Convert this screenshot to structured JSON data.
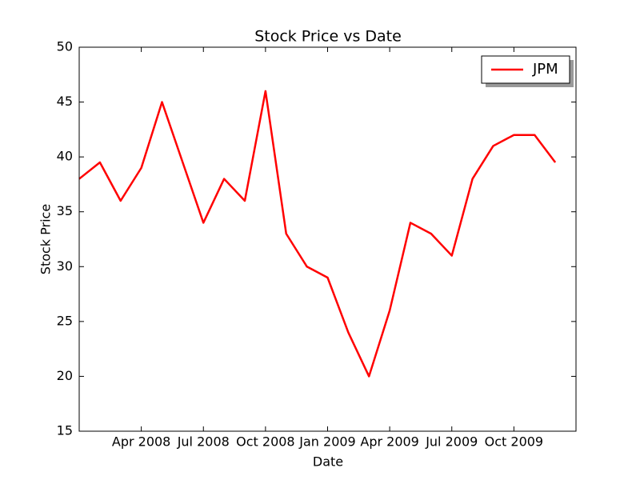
{
  "chart_data": {
    "type": "line",
    "title": "Stock Price vs Date",
    "x_label": "Date",
    "y_label": "Stock Price",
    "x": [
      "2008-01",
      "2008-02",
      "2008-03",
      "2008-04",
      "2008-05",
      "2008-06",
      "2008-07",
      "2008-08",
      "2008-09",
      "2008-10",
      "2008-11",
      "2008-12",
      "2009-01",
      "2009-02",
      "2009-03",
      "2009-04",
      "2009-05",
      "2009-06",
      "2009-07",
      "2009-08",
      "2009-09",
      "2009-10",
      "2009-11",
      "2009-12"
    ],
    "series": [
      {
        "name": "JPM",
        "color": "#ff0000",
        "values": [
          38,
          39.5,
          36,
          39,
          45,
          39.5,
          34,
          38,
          36,
          46,
          33,
          30,
          29,
          24,
          20,
          26,
          34,
          33,
          31,
          38,
          41,
          42,
          42,
          39.5
        ]
      }
    ],
    "xlim": [
      "2008-01",
      "2010-01"
    ],
    "xticks": [
      {
        "value": "2008-04",
        "label": "Apr 2008"
      },
      {
        "value": "2008-07",
        "label": "Jul 2008"
      },
      {
        "value": "2008-10",
        "label": "Oct 2008"
      },
      {
        "value": "2009-01",
        "label": "Jan 2009"
      },
      {
        "value": "2009-04",
        "label": "Apr 2009"
      },
      {
        "value": "2009-07",
        "label": "Jul 2009"
      },
      {
        "value": "2009-10",
        "label": "Oct 2009"
      }
    ],
    "ylim": [
      15,
      50
    ],
    "yticks": [
      15,
      20,
      25,
      30,
      35,
      40,
      45,
      50
    ],
    "legend": "upper right"
  }
}
